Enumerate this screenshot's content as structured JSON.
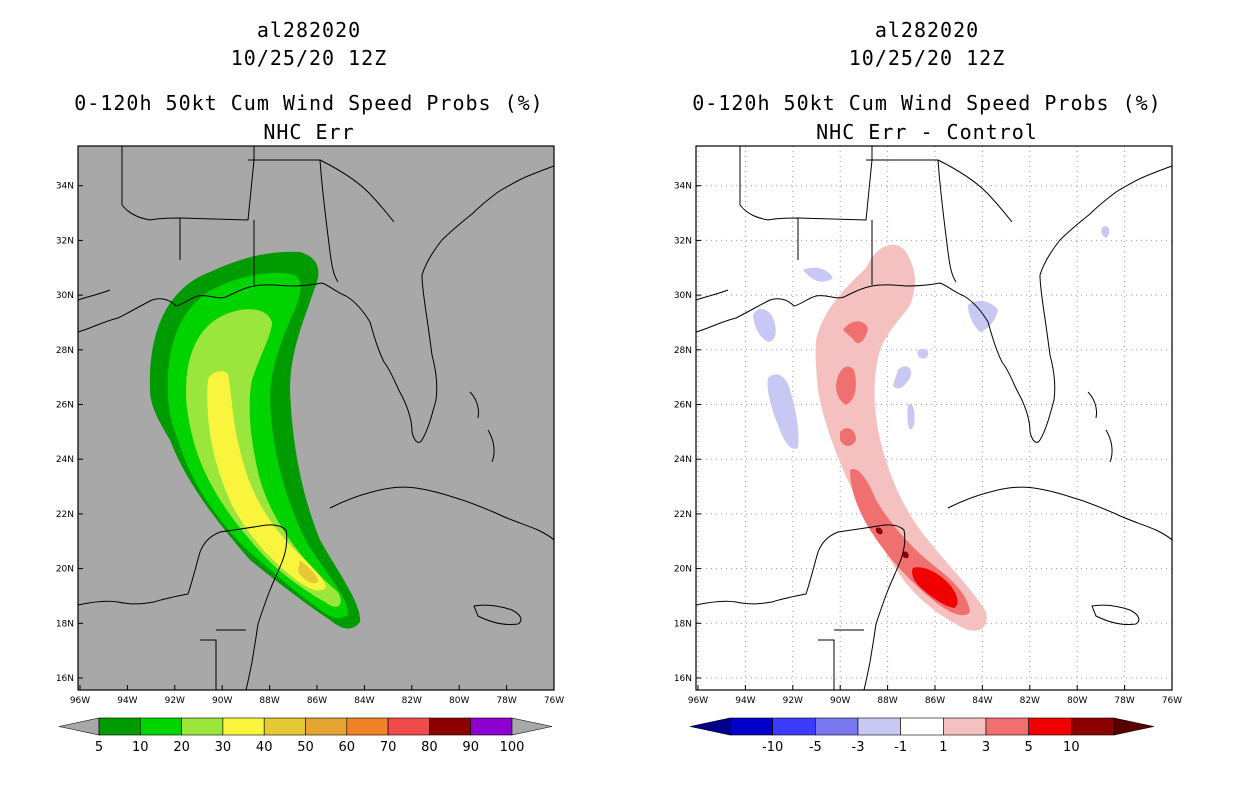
{
  "panels": [
    {
      "storm_id": "al282020",
      "datetime": "10/25/20 12Z",
      "product": "0-120h 50kt Cum Wind Speed Probs (%)",
      "subtitle": "NHC Err",
      "background": "#a8a8a8",
      "colorbar": {
        "colors": [
          "#009b00",
          "#00d400",
          "#9be63c",
          "#f8f53c",
          "#e6c837",
          "#e6a532",
          "#f08228",
          "#f04b4b",
          "#8c0000",
          "#8c00d2"
        ],
        "labels": [
          "5",
          "10",
          "20",
          "30",
          "40",
          "50",
          "60",
          "70",
          "80",
          "90",
          "100"
        ]
      }
    },
    {
      "storm_id": "al282020",
      "datetime": "10/25/20 12Z",
      "product": "0-120h 50kt Cum Wind Speed Probs (%)",
      "subtitle": "NHC Err - Control",
      "background": "#ffffff",
      "colorbar": {
        "colors": [
          "#0000c8",
          "#3c3cff",
          "#7878f0",
          "#c8c8f5",
          "#ffffff",
          "#f5c0c0",
          "#f07070",
          "#f00000",
          "#8c0000"
        ],
        "labels": [
          "-10",
          "-5",
          "-3",
          "-1",
          "1",
          "3",
          "5",
          "10"
        ]
      }
    }
  ],
  "axes": {
    "lon_labels": [
      "96W",
      "94W",
      "92W",
      "90W",
      "88W",
      "86W",
      "84W",
      "82W",
      "80W",
      "78W",
      "76W"
    ],
    "lat_labels": [
      "16N",
      "18N",
      "20N",
      "22N",
      "24N",
      "26N",
      "28N",
      "30N",
      "32N",
      "34N"
    ]
  }
}
